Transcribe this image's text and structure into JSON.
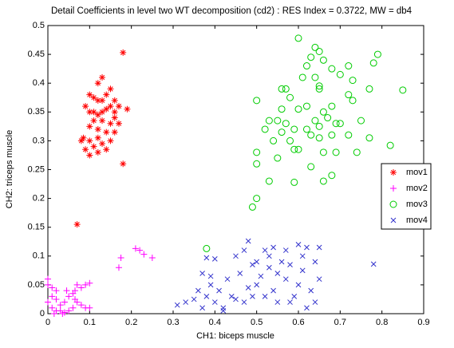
{
  "chart_data": {
    "type": "scatter",
    "title": "Detail Coefficients in level two WT decomposition (cd2) : RES Index = 0.3722, MW = db4",
    "x_label": "CH1: biceps muscle",
    "y_label": "CH2: triceps muscle",
    "xlim": [
      0,
      0.9
    ],
    "ylim": [
      0,
      0.5
    ],
    "xticks": [
      0,
      0.1,
      0.2,
      0.3,
      0.4,
      0.5,
      0.6,
      0.7,
      0.8,
      0.9
    ],
    "yticks": [
      0,
      0.05,
      0.1,
      0.15,
      0.2,
      0.25,
      0.3,
      0.35,
      0.4,
      0.45,
      0.5
    ],
    "legend": "right",
    "series": [
      {
        "name": "mov1",
        "color": "#ff0000",
        "marker": "asterisk",
        "x": [
          0.18,
          0.13,
          0.12,
          0.1,
          0.11,
          0.12,
          0.13,
          0.14,
          0.15,
          0.16,
          0.17,
          0.19,
          0.09,
          0.1,
          0.11,
          0.12,
          0.13,
          0.14,
          0.15,
          0.16,
          0.11,
          0.13,
          0.15,
          0.17,
          0.1,
          0.12,
          0.14,
          0.16,
          0.12,
          0.08,
          0.1,
          0.13,
          0.15,
          0.11,
          0.09,
          0.12,
          0.14,
          0.1,
          0.18,
          0.07,
          0.085,
          0.16
        ],
        "values": [
          0.453,
          0.41,
          0.4,
          0.38,
          0.375,
          0.37,
          0.37,
          0.38,
          0.39,
          0.37,
          0.36,
          0.355,
          0.36,
          0.35,
          0.35,
          0.345,
          0.35,
          0.355,
          0.36,
          0.35,
          0.335,
          0.335,
          0.33,
          0.33,
          0.325,
          0.32,
          0.315,
          0.315,
          0.305,
          0.3,
          0.3,
          0.295,
          0.3,
          0.29,
          0.285,
          0.28,
          0.285,
          0.275,
          0.26,
          0.155,
          0.305,
          0.34
        ]
      },
      {
        "name": "mov2",
        "color": "#ff00ff",
        "marker": "plus",
        "x": [
          0.0,
          0.0,
          0.01,
          0.02,
          0.0,
          0.01,
          0.02,
          0.03,
          0.04,
          0.05,
          0.03,
          0.04,
          0.05,
          0.06,
          0.07,
          0.065,
          0.08,
          0.09,
          0.1,
          0.07,
          0.08,
          0.06,
          0.09,
          0.1,
          0.065,
          0.045,
          0.02,
          0.01,
          0.17,
          0.175,
          0.21,
          0.22,
          0.23,
          0.25,
          0.035,
          0.015
        ],
        "values": [
          0.06,
          0.05,
          0.03,
          0.025,
          0.02,
          0.01,
          0.005,
          0.005,
          0.002,
          0.005,
          0.015,
          0.02,
          0.03,
          0.035,
          0.05,
          0.04,
          0.045,
          0.05,
          0.053,
          0.02,
          0.015,
          0.01,
          0.01,
          0.01,
          0.025,
          0.04,
          0.04,
          0.045,
          0.08,
          0.097,
          0.113,
          0.11,
          0.103,
          0.097,
          0.0,
          0.0
        ]
      },
      {
        "name": "mov3",
        "color": "#00cc00",
        "marker": "circle",
        "x": [
          0.6,
          0.64,
          0.65,
          0.63,
          0.66,
          0.62,
          0.68,
          0.72,
          0.78,
          0.79,
          0.64,
          0.7,
          0.61,
          0.65,
          0.73,
          0.56,
          0.57,
          0.65,
          0.77,
          0.85,
          0.5,
          0.58,
          0.62,
          0.68,
          0.72,
          0.73,
          0.56,
          0.6,
          0.66,
          0.55,
          0.53,
          0.57,
          0.64,
          0.67,
          0.69,
          0.59,
          0.62,
          0.65,
          0.7,
          0.75,
          0.52,
          0.56,
          0.63,
          0.68,
          0.72,
          0.77,
          0.82,
          0.54,
          0.58,
          0.65,
          0.5,
          0.59,
          0.6,
          0.66,
          0.69,
          0.74,
          0.5,
          0.55,
          0.63,
          0.68,
          0.59,
          0.66,
          0.53,
          0.5,
          0.49,
          0.38
        ],
        "values": [
          0.478,
          0.462,
          0.455,
          0.445,
          0.44,
          0.43,
          0.425,
          0.43,
          0.435,
          0.45,
          0.41,
          0.415,
          0.41,
          0.395,
          0.405,
          0.39,
          0.39,
          0.39,
          0.39,
          0.388,
          0.37,
          0.375,
          0.36,
          0.36,
          0.38,
          0.37,
          0.355,
          0.355,
          0.35,
          0.335,
          0.335,
          0.33,
          0.335,
          0.34,
          0.33,
          0.32,
          0.32,
          0.325,
          0.33,
          0.335,
          0.32,
          0.315,
          0.31,
          0.31,
          0.31,
          0.305,
          0.292,
          0.3,
          0.3,
          0.305,
          0.28,
          0.285,
          0.285,
          0.28,
          0.28,
          0.28,
          0.26,
          0.27,
          0.255,
          0.24,
          0.228,
          0.23,
          0.23,
          0.2,
          0.185,
          0.113
        ]
      },
      {
        "name": "mov4",
        "color": "#3333cc",
        "marker": "x",
        "x": [
          0.31,
          0.33,
          0.35,
          0.36,
          0.37,
          0.38,
          0.38,
          0.39,
          0.4,
          0.4,
          0.41,
          0.42,
          0.43,
          0.44,
          0.45,
          0.45,
          0.46,
          0.47,
          0.47,
          0.48,
          0.48,
          0.49,
          0.49,
          0.5,
          0.5,
          0.51,
          0.52,
          0.52,
          0.53,
          0.53,
          0.54,
          0.54,
          0.55,
          0.55,
          0.56,
          0.57,
          0.57,
          0.58,
          0.58,
          0.59,
          0.6,
          0.6,
          0.61,
          0.61,
          0.62,
          0.62,
          0.63,
          0.64,
          0.64,
          0.65,
          0.65,
          0.37,
          0.39,
          0.42,
          0.78
        ],
        "values": [
          0.015,
          0.02,
          0.025,
          0.04,
          0.01,
          0.03,
          0.097,
          0.05,
          0.02,
          0.095,
          0.04,
          0.01,
          0.06,
          0.03,
          0.025,
          0.1,
          0.07,
          0.02,
          0.11,
          0.045,
          0.126,
          0.085,
          0.03,
          0.05,
          0.09,
          0.065,
          0.11,
          0.03,
          0.08,
          0.1,
          0.04,
          0.115,
          0.07,
          0.02,
          0.09,
          0.06,
          0.11,
          0.02,
          0.085,
          0.03,
          0.12,
          0.05,
          0.075,
          0.1,
          0.115,
          0.01,
          0.04,
          0.09,
          0.02,
          0.06,
          0.115,
          0.07,
          0.065,
          0.005,
          0.086
        ]
      }
    ]
  }
}
